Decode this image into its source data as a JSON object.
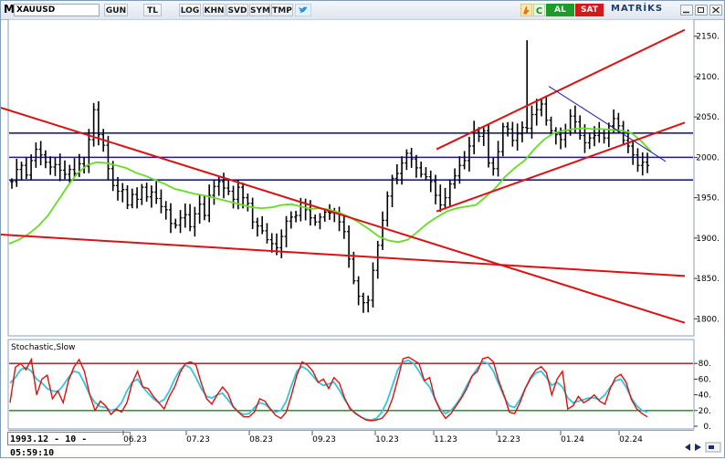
{
  "toolbar": {
    "menu_label": "M",
    "symbol": "XAUUSD",
    "buttons": [
      "GUN",
      "TL",
      "LOG",
      "KHN",
      "SVD",
      "SYM",
      "TMP"
    ],
    "buy_label": "AL",
    "sell_label": "SAT",
    "brand": "MATRİKS",
    "window_controls": [
      "minimize-icon",
      "restore-icon",
      "close-icon"
    ]
  },
  "status": {
    "cursor_time": "1993.12 - 10 - 05:59:10"
  },
  "colors": {
    "price_bar": "#000000",
    "moving_average": "#66dd22",
    "horizontal_lines": "#1a1aa0",
    "trend_lines": "#dd1111",
    "stoch_k": "#dd1111",
    "stoch_d": "#33c6dd",
    "stoch_upper": "#aa1111",
    "stoch_lower": "#118811"
  },
  "chart_data": [
    {
      "type": "line",
      "panel": "price",
      "y_ticks": [
        "2150.",
        "2100.",
        "2050.",
        "2000.",
        "1950.",
        "1900.",
        "1850.",
        "1800."
      ],
      "ylim": [
        1780,
        2170
      ],
      "x_ticks": [
        "06.23",
        "07.23",
        "08.23",
        "09.23",
        "10.23",
        "11.23",
        "12.23",
        "01.24",
        "02.24"
      ],
      "series": [
        {
          "style": "ohlc-close",
          "values": [
            1970,
            1985,
            1990,
            1978,
            1996,
            2010,
            2003,
            1994,
            1988,
            1991,
            1984,
            1979,
            1985,
            1980,
            1992,
            1989,
            2022,
            2059,
            2028,
            2015,
            1986,
            1965,
            1958,
            1960,
            1941,
            1954,
            1948,
            1963,
            1951,
            1957,
            1949,
            1939,
            1935,
            1918,
            1916,
            1925,
            1929,
            1914,
            1930,
            1942,
            1928,
            1953,
            1964,
            1970,
            1962,
            1958,
            1948,
            1963,
            1950,
            1943,
            1920,
            1915,
            1909,
            1898,
            1893,
            1888,
            1902,
            1921,
            1926,
            1928,
            1944,
            1935,
            1925,
            1920,
            1926,
            1932,
            1931,
            1931,
            1920,
            1908,
            1874,
            1847,
            1828,
            1820,
            1823,
            1860,
            1891,
            1922,
            1952,
            1974,
            1980,
            1993,
            2005,
            1998,
            1987,
            1979,
            1976,
            1970,
            1953,
            1941,
            1950,
            1967,
            1977,
            1990,
            1996,
            2014,
            2032,
            2026,
            2033,
            1993,
            1986,
            2007,
            2038,
            2035,
            2021,
            2029,
            2037,
            2036,
            2053,
            2059,
            2066,
            2046,
            2033,
            2028,
            2022,
            2033,
            2051,
            2044,
            2027,
            2018,
            2024,
            2027,
            2030,
            2024,
            2039,
            2048,
            2039,
            2021,
            2014,
            2003,
            1990,
            1994,
            1990
          ]
        },
        {
          "name": "",
          "style": "moving-average",
          "values": [
            1893,
            1898,
            1905,
            1915,
            1928,
            1946,
            1964,
            1980,
            1990,
            1994,
            1993,
            1990,
            1987,
            1981,
            1977,
            1972,
            1967,
            1961,
            1958,
            1955,
            1953,
            1950,
            1947,
            1944,
            1941,
            1938,
            1937,
            1938,
            1941,
            1942,
            1939,
            1936,
            1937,
            1935,
            1931,
            1926,
            1919,
            1911,
            1902,
            1897,
            1895,
            1898,
            1908,
            1918,
            1926,
            1933,
            1937,
            1939,
            1941,
            1951,
            1962,
            1976,
            1987,
            1996,
            2010,
            2022,
            2030,
            2033,
            2035,
            2036,
            2035,
            2035,
            2034,
            2033,
            2030,
            2020,
            2007
          ]
        }
      ],
      "horizontal_lines": [
        2030,
        2000,
        1972
      ],
      "trend_lines": [
        {
          "from": [
            "05.23",
            2065
          ],
          "to": [
            "03.24",
            1795
          ]
        },
        {
          "from": [
            "05.23",
            1905
          ],
          "to": [
            "03.24",
            1853
          ]
        },
        {
          "from": [
            "11.23",
            2010
          ],
          "to": [
            "03.24",
            2158
          ]
        },
        {
          "from": [
            "11.23",
            1933
          ],
          "to": [
            "03.24",
            2043
          ]
        }
      ]
    },
    {
      "type": "line",
      "panel": "stochastic",
      "title": "Stochastic,Slow",
      "y_ticks": [
        "80.",
        "60.",
        "40.",
        "20.",
        "0."
      ],
      "ylim": [
        0,
        100
      ],
      "levels": [
        80,
        20
      ],
      "series": [
        {
          "style": "percent-k",
          "values": [
            30,
            75,
            80,
            72,
            85,
            40,
            60,
            65,
            35,
            45,
            30,
            58,
            75,
            85,
            70,
            40,
            20,
            32,
            26,
            15,
            22,
            18,
            30,
            55,
            70,
            50,
            48,
            38,
            30,
            22,
            38,
            50,
            68,
            80,
            82,
            78,
            55,
            35,
            28,
            40,
            50,
            42,
            25,
            18,
            12,
            12,
            18,
            35,
            32,
            22,
            14,
            10,
            18,
            40,
            65,
            82,
            78,
            70,
            56,
            60,
            48,
            62,
            55,
            36,
            22,
            17,
            12,
            8,
            7,
            8,
            10,
            18,
            35,
            60,
            86,
            88,
            84,
            80,
            58,
            62,
            35,
            20,
            10,
            16,
            26,
            36,
            48,
            64,
            70,
            86,
            88,
            82,
            58,
            40,
            18,
            16,
            30,
            48,
            62,
            72,
            76,
            68,
            40,
            60,
            70,
            22,
            26,
            38,
            30,
            34,
            40,
            32,
            28,
            48,
            62,
            66,
            56,
            34,
            22,
            16,
            12
          ]
        },
        {
          "style": "percent-d",
          "values": [
            55,
            62,
            72,
            75,
            70,
            60,
            55,
            48,
            45,
            44,
            52,
            62,
            70,
            68,
            55,
            40,
            30,
            25,
            24,
            20,
            22,
            30,
            45,
            56,
            60,
            50,
            42,
            35,
            30,
            34,
            45,
            60,
            72,
            78,
            74,
            62,
            48,
            38,
            36,
            40,
            42,
            34,
            25,
            18,
            15,
            16,
            24,
            30,
            28,
            22,
            18,
            20,
            32,
            52,
            70,
            76,
            72,
            64,
            56,
            52,
            54,
            56,
            46,
            34,
            24,
            16,
            12,
            9,
            8,
            10,
            18,
            32,
            52,
            72,
            82,
            84,
            80,
            70,
            58,
            50,
            35,
            22,
            16,
            20,
            28,
            38,
            52,
            64,
            74,
            82,
            80,
            70,
            54,
            38,
            26,
            24,
            34,
            48,
            60,
            68,
            70,
            62,
            52,
            56,
            50,
            36,
            30,
            32,
            34,
            36,
            36,
            34,
            40,
            50,
            58,
            60,
            50,
            36,
            26,
            20,
            18
          ]
        }
      ]
    }
  ]
}
